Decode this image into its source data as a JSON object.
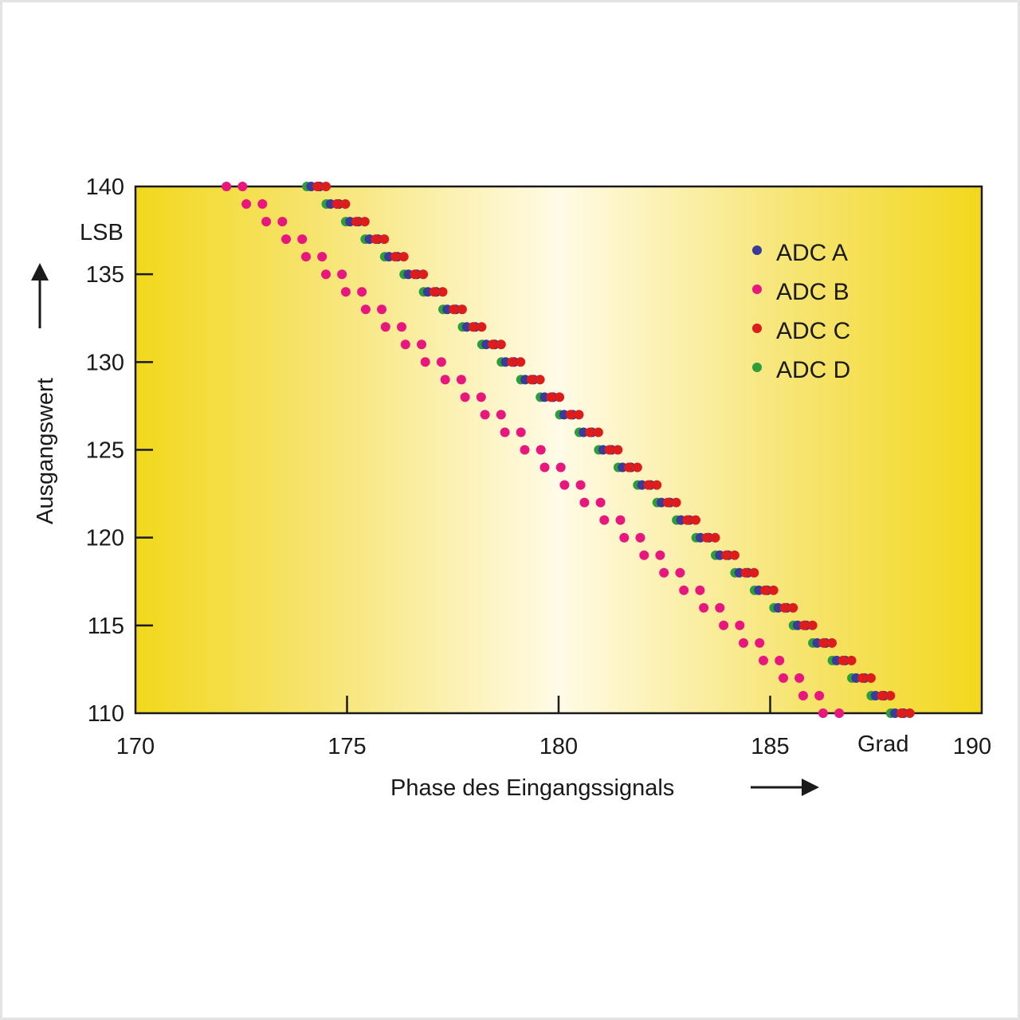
{
  "chart_data": {
    "type": "scatter",
    "xlabel": "Phase des Eingangssignals",
    "ylabel": "Ausgangswert",
    "x_unit": "Grad",
    "y_unit": "LSB",
    "xlim": [
      170,
      190
    ],
    "ylim": [
      110,
      140
    ],
    "x_ticks": [
      {
        "value": 170,
        "label": "170"
      },
      {
        "value": 175,
        "label": "175"
      },
      {
        "value": 180,
        "label": "180"
      },
      {
        "value": 185,
        "label": "185"
      },
      {
        "value": 190,
        "label": "190"
      }
    ],
    "y_ticks": [
      {
        "value": 110,
        "label": "110"
      },
      {
        "value": 115,
        "label": "115"
      },
      {
        "value": 120,
        "label": "120"
      },
      {
        "value": 125,
        "label": "125"
      },
      {
        "value": 130,
        "label": "130"
      },
      {
        "value": 135,
        "label": "135"
      },
      {
        "value": 140,
        "label": "140"
      }
    ],
    "legend_position": "top-right",
    "series": [
      {
        "name": "ADC A",
        "color": "#3a3a9a",
        "y_start": 140,
        "y_end": 110,
        "x_at_y140": 174.15,
        "x_step": 0.46,
        "width": 0.2,
        "points_per_level": 2
      },
      {
        "name": "ADC B",
        "color": "#e8177d",
        "y_start": 140,
        "y_end": 110,
        "x_at_y140": 172.15,
        "x_step": 0.47,
        "width": 0.38,
        "points_per_level": 2
      },
      {
        "name": "ADC C",
        "color": "#dd1c1c",
        "y_start": 140,
        "y_end": 110,
        "x_at_y140": 174.3,
        "x_step": 0.46,
        "width": 0.2,
        "points_per_level": 2
      },
      {
        "name": "ADC D",
        "color": "#2e9e3a",
        "y_start": 140,
        "y_end": 110,
        "x_at_y140": 174.05,
        "x_step": 0.46,
        "width": 0.3,
        "points_per_level": 2
      }
    ]
  }
}
